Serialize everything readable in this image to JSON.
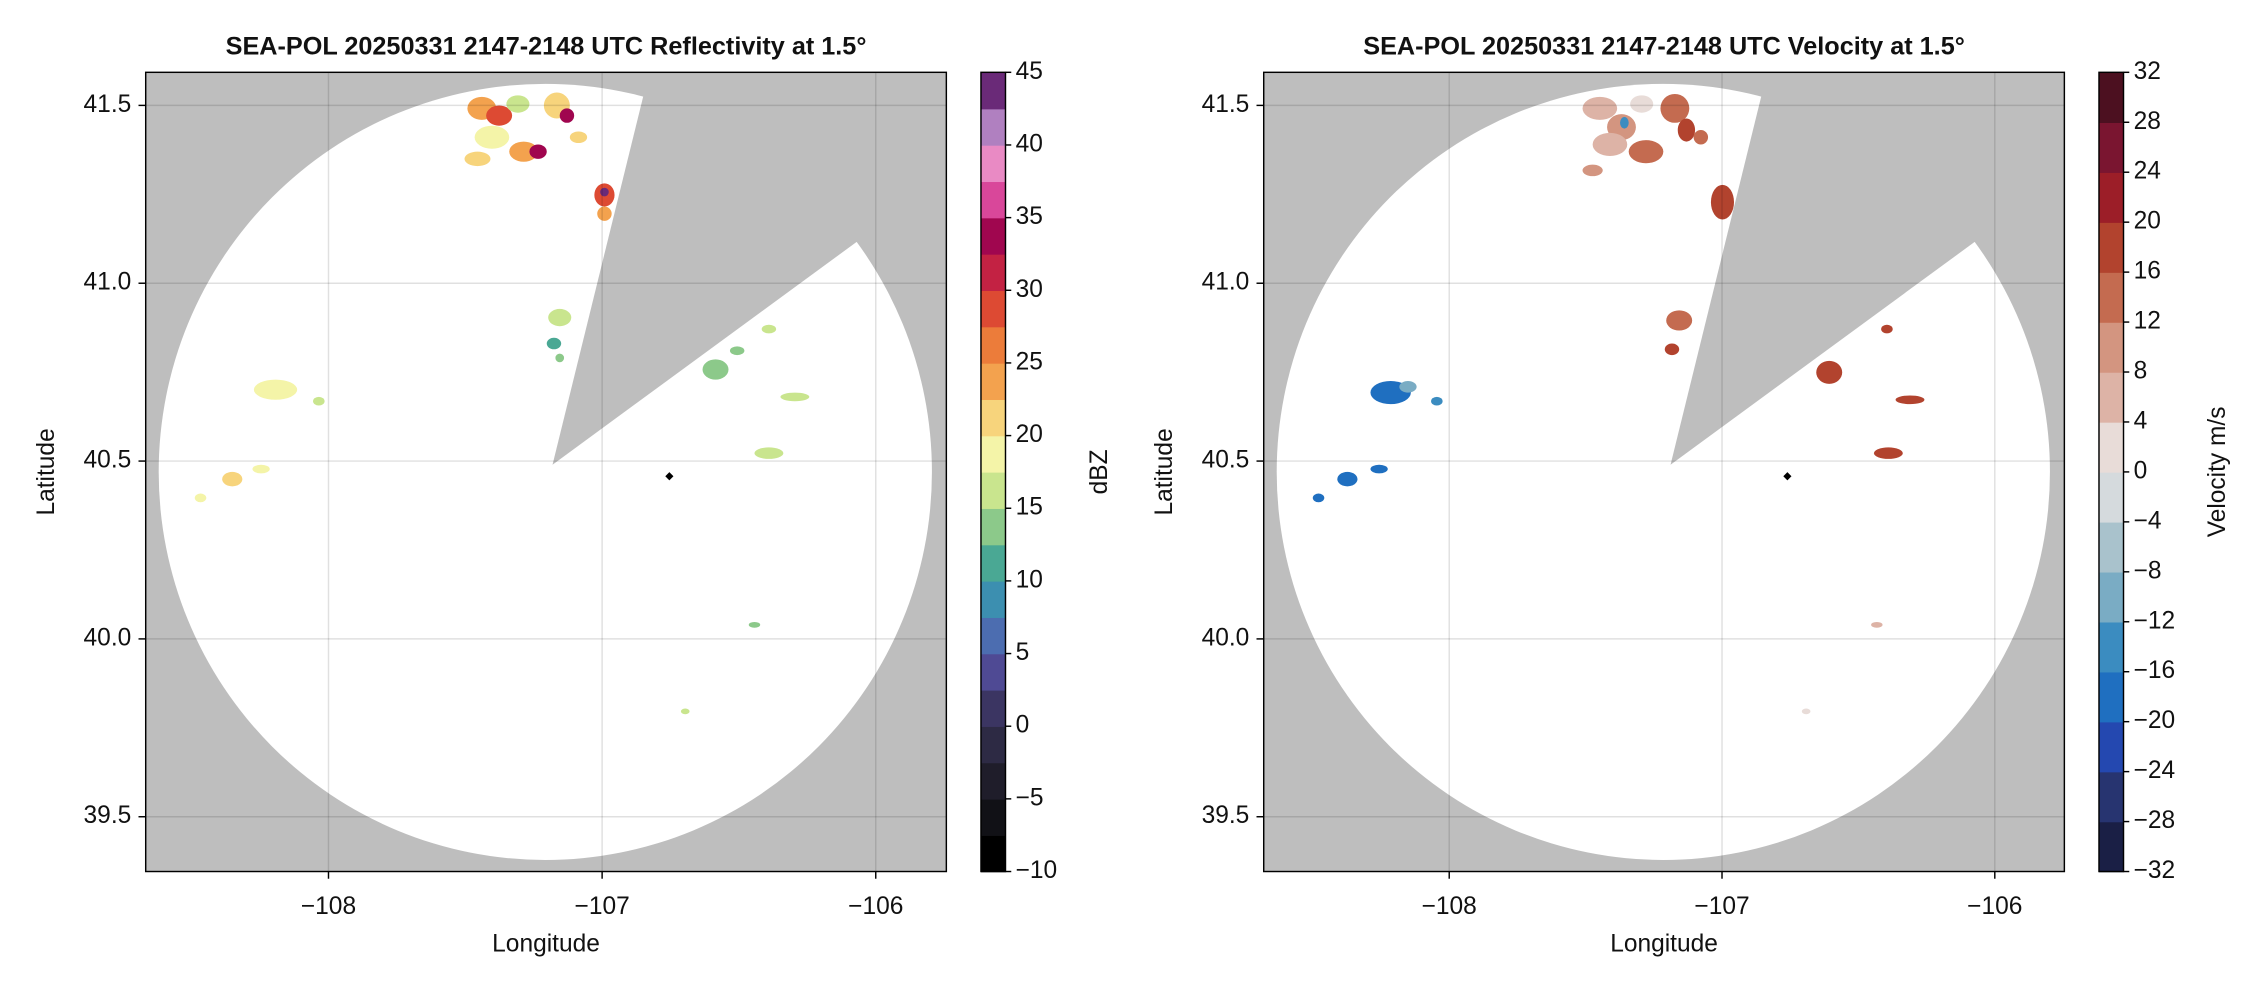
{
  "chart_data": [
    {
      "type": "radar-ppi",
      "title": "SEA-POL 20250331 2147-2148 UTC Reflectivity at 1.5°",
      "xlabel": "Longitude",
      "ylabel": "Latitude",
      "xlim": [
        -108.668,
        -105.742
      ],
      "ylim": [
        39.346,
        41.593
      ],
      "xticks": [
        {
          "value": -108,
          "label": "−108"
        },
        {
          "value": -107,
          "label": "−107"
        },
        {
          "value": -106,
          "label": "−106"
        }
      ],
      "yticks": [
        39.5,
        {
          "value": 40.0,
          "label": "40.0"
        },
        40.5,
        {
          "value": 41.0,
          "label": "41.0"
        },
        41.5
      ],
      "grid": true,
      "colorbar": {
        "label": "dBZ",
        "lim": [
          -10,
          45
        ],
        "ticks": [
          {
            "value": -10,
            "label": "−10"
          },
          {
            "value": -5,
            "label": "−5"
          },
          0,
          5,
          10,
          15,
          20,
          25,
          30,
          35,
          40,
          45
        ],
        "colors": [
          "#000000",
          "#111116",
          "#1f1d2a",
          "#2d2a44",
          "#3b3562",
          "#4f4a94",
          "#4c6db0",
          "#3c8fb0",
          "#4aa894",
          "#8cc98a",
          "#c9e58e",
          "#f4f4a8",
          "#f7d47c",
          "#f3a24e",
          "#ec7c3a",
          "#dd4a33",
          "#c32243",
          "#a0064f",
          "#d9479a",
          "#e98ac4",
          "#b080c0",
          "#6a2a78"
        ]
      }
    },
    {
      "type": "radar-ppi",
      "title": "SEA-POL 20250331 2147-2148 UTC Velocity at 1.5°",
      "xlabel": "Longitude",
      "ylabel": "Latitude",
      "xlim": [
        -108.68,
        -105.745
      ],
      "ylim": [
        39.346,
        41.593
      ],
      "xticks": [
        {
          "value": -108,
          "label": "−108"
        },
        {
          "value": -107,
          "label": "−107"
        },
        {
          "value": -106,
          "label": "−106"
        }
      ],
      "yticks": [
        39.5,
        {
          "value": 40.0,
          "label": "40.0"
        },
        40.5,
        {
          "value": 41.0,
          "label": "41.0"
        },
        41.5
      ],
      "grid": true,
      "colorbar": {
        "label": "Velocity m/s",
        "lim": [
          -32,
          32
        ],
        "ticks": [
          {
            "value": -32,
            "label": "−32"
          },
          {
            "value": -28,
            "label": "−28"
          },
          {
            "value": -24,
            "label": "−24"
          },
          {
            "value": -20,
            "label": "−20"
          },
          {
            "value": -16,
            "label": "−16"
          },
          {
            "value": -12,
            "label": "−12"
          },
          {
            "value": -8,
            "label": "−8"
          },
          {
            "value": -4,
            "label": "−4"
          },
          0,
          4,
          8,
          12,
          16,
          20,
          24,
          28,
          32
        ],
        "colors": [
          "#1a1f45",
          "#273470",
          "#2448b0",
          "#1f6fc0",
          "#3b8cc0",
          "#7aacc4",
          "#a9c2cc",
          "#d5dadd",
          "#e8dcd8",
          "#ddb3a6",
          "#d39580",
          "#c46b50",
          "#b2432e",
          "#9c1e28",
          "#7a1530",
          "#4c1020"
        ]
      }
    }
  ]
}
